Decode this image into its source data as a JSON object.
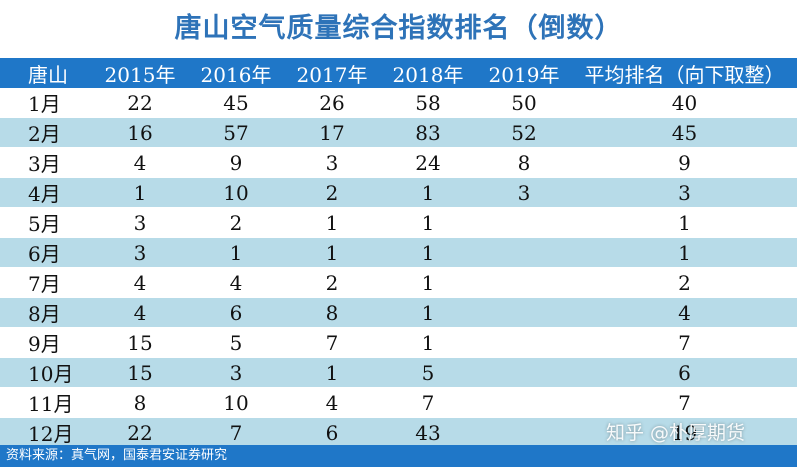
{
  "title": "唐山空气质量综合指数排名（倒数）",
  "headers": [
    "唐山",
    "2015年",
    "2016年",
    "2017年",
    "2018年",
    "2019年",
    "平均排名（向下取整）"
  ],
  "rows": [
    [
      "1月",
      "22",
      "45",
      "26",
      "58",
      "50",
      "40"
    ],
    [
      "2月",
      "16",
      "57",
      "17",
      "83",
      "52",
      "45"
    ],
    [
      "3月",
      "4",
      "9",
      "3",
      "24",
      "8",
      "9"
    ],
    [
      "4月",
      "1",
      "10",
      "2",
      "1",
      "3",
      "3"
    ],
    [
      "5月",
      "3",
      "2",
      "1",
      "1",
      "",
      "1"
    ],
    [
      "6月",
      "3",
      "1",
      "1",
      "1",
      "",
      "1"
    ],
    [
      "7月",
      "4",
      "4",
      "2",
      "1",
      "",
      "2"
    ],
    [
      "8月",
      "4",
      "6",
      "8",
      "1",
      "",
      "4"
    ],
    [
      "9月",
      "15",
      "5",
      "7",
      "1",
      "",
      "7"
    ],
    [
      "10月",
      "15",
      "3",
      "1",
      "5",
      "",
      "6"
    ],
    [
      "11月",
      "8",
      "10",
      "4",
      "7",
      "",
      "7"
    ],
    [
      "12月",
      "22",
      "7",
      "6",
      "43",
      "",
      "19"
    ]
  ],
  "footer": "资料来源：真气网，国泰君安证券研究",
  "watermark": "知乎 @朴厚期货",
  "colors": {
    "header_bg": "#1f77c8",
    "title": "#2e73b8",
    "band": "#b7dbe8"
  }
}
